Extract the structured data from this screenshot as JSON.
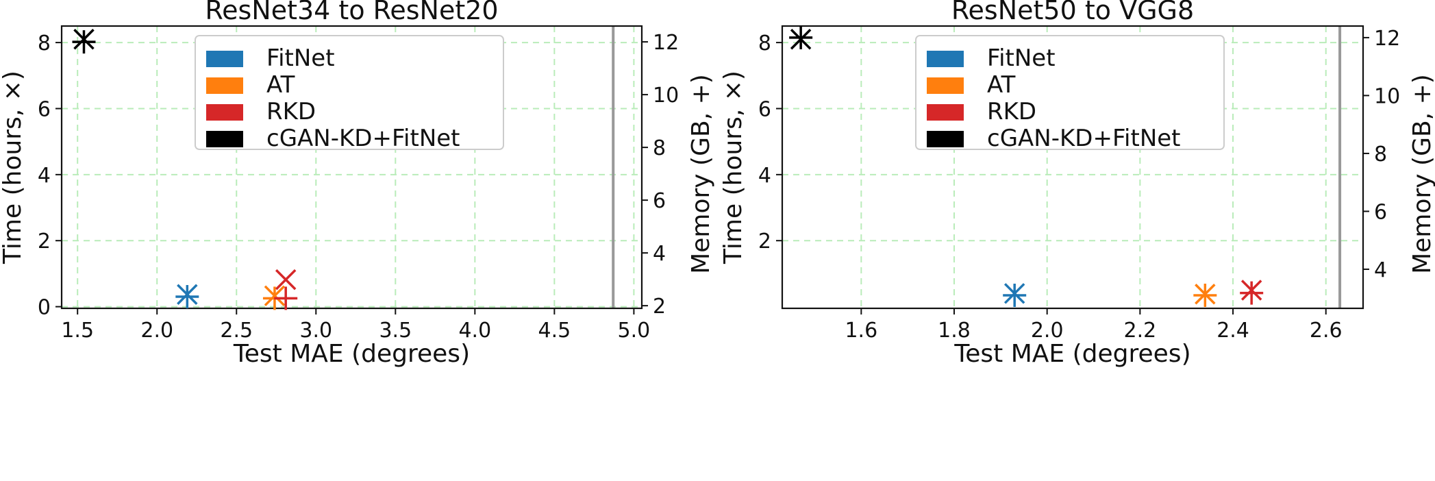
{
  "chart_data": [
    {
      "type": "scatter",
      "title": "ResNet34 to ResNet20",
      "xlabel": "Test MAE (degrees)",
      "ylabel": "Time (hours, ×)",
      "y2label": "Memory (GB, +)",
      "xlim": [
        1.4,
        5.05
      ],
      "ylim": [
        -0.05,
        8.5
      ],
      "y2lim": [
        1.9,
        12.6
      ],
      "xticks": [
        1.5,
        2.0,
        2.5,
        3.0,
        3.5,
        4.0,
        4.5,
        5.0
      ],
      "yticks": [
        0,
        2,
        4,
        6,
        8
      ],
      "y2ticks": [
        2,
        4,
        6,
        8,
        10,
        12
      ],
      "vline_x": 4.87,
      "vline_color": "#999999",
      "grid": true,
      "legend": "top-center",
      "series": [
        {
          "name": "FitNet",
          "color": "#1f77b4",
          "mae": 2.19,
          "time": 0.37,
          "memory": 2.34
        },
        {
          "name": "AT",
          "color": "#ff7f0e",
          "mae": 2.74,
          "time": 0.33,
          "memory": 2.28
        },
        {
          "name": "RKD",
          "color": "#d62728",
          "mae": 2.81,
          "time": 0.82,
          "memory": 2.28
        },
        {
          "name": "cGAN-KD+FitNet",
          "color": "#000000",
          "mae": 1.54,
          "time": 8.1,
          "memory": 12.0
        }
      ]
    },
    {
      "type": "scatter",
      "title": "ResNet50 to VGG8",
      "xlabel": "Test MAE (degrees)",
      "ylabel": "Time (hours, ×)",
      "y2label": "Memory (GB, +)",
      "xlim": [
        1.43,
        2.68
      ],
      "ylim": [
        -0.05,
        8.5
      ],
      "y2lim": [
        2.65,
        12.4
      ],
      "xticks": [
        1.6,
        1.8,
        2.0,
        2.2,
        2.4,
        2.6
      ],
      "yticks": [
        2,
        4,
        6,
        8
      ],
      "y2ticks": [
        4,
        6,
        8,
        10,
        12
      ],
      "vline_x": 2.63,
      "vline_color": "#999999",
      "grid": true,
      "legend": "top-center",
      "series": [
        {
          "name": "FitNet",
          "color": "#1f77b4",
          "mae": 1.93,
          "time": 0.4,
          "memory": 3.1
        },
        {
          "name": "AT",
          "color": "#ff7f0e",
          "mae": 2.34,
          "time": 0.38,
          "memory": 3.1
        },
        {
          "name": "RKD",
          "color": "#d62728",
          "mae": 2.44,
          "time": 0.5,
          "memory": 3.18
        },
        {
          "name": "cGAN-KD+FitNet",
          "color": "#000000",
          "mae": 1.47,
          "time": 8.1,
          "memory": 12.0
        }
      ]
    }
  ]
}
